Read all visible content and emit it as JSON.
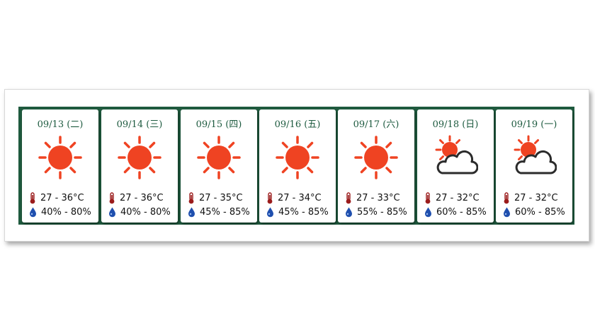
{
  "colors": {
    "frame_green": "#1f5a3e",
    "date_text": "#1d5a3f",
    "sun": "#ef4322",
    "cloud_outline": "#2b2b2b",
    "thermometer": "#9b1c1c",
    "humidity_drop": "#1f4fae"
  },
  "forecast": [
    {
      "date": "09/13 (二)",
      "icon": "sunny-icon",
      "temp": "27 - 36°C",
      "humidity": "40% - 80%"
    },
    {
      "date": "09/14 (三)",
      "icon": "sunny-icon",
      "temp": "27 - 36°C",
      "humidity": "40% - 80%"
    },
    {
      "date": "09/15 (四)",
      "icon": "sunny-icon",
      "temp": "27 - 35°C",
      "humidity": "45% - 85%"
    },
    {
      "date": "09/16 (五)",
      "icon": "sunny-icon",
      "temp": "27 - 34°C",
      "humidity": "45% - 85%"
    },
    {
      "date": "09/17 (六)",
      "icon": "sunny-icon",
      "temp": "27 - 33°C",
      "humidity": "55% - 85%"
    },
    {
      "date": "09/18 (日)",
      "icon": "sunny-periods-cloud-icon",
      "temp": "27 - 32°C",
      "humidity": "60% - 85%"
    },
    {
      "date": "09/19 (一)",
      "icon": "sunny-periods-cloud-icon",
      "temp": "27 - 32°C",
      "humidity": "60% - 85%"
    }
  ]
}
